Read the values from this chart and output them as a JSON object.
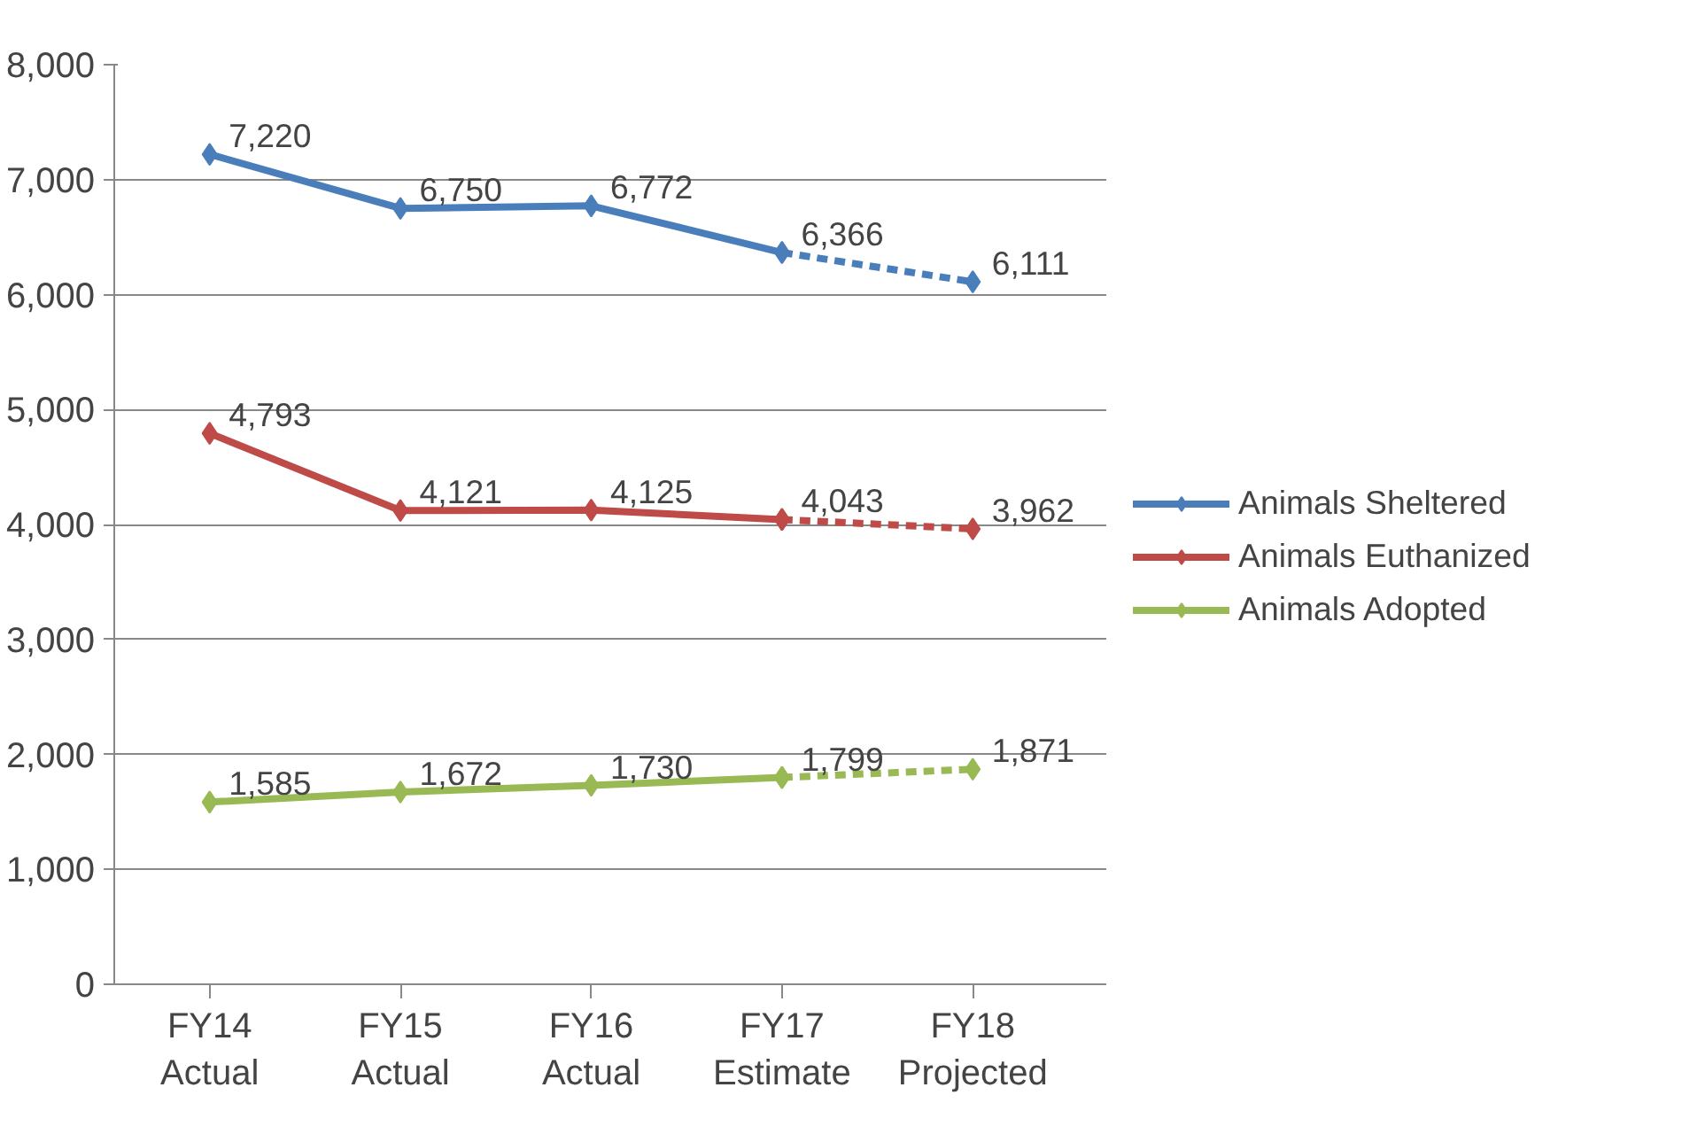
{
  "chart_data": {
    "type": "line",
    "categories": [
      "FY14\nActual",
      "FY15\nActual",
      "FY16\nActual",
      "FY17\nEstimate",
      "FY18\nProjected"
    ],
    "series": [
      {
        "name": "Animals Sheltered",
        "color": "#4a7ebb",
        "line_style": "solid",
        "values": [
          7220,
          6750,
          6772,
          6366,
          null
        ],
        "value_labels": [
          "7,220",
          "6,750",
          "6,772",
          "6,366",
          null
        ]
      },
      {
        "color": "#4a7ebb",
        "line_style": "dashed",
        "values": [
          null,
          null,
          null,
          6366,
          6111
        ],
        "value_labels": [
          null,
          null,
          null,
          null,
          "6,111"
        ]
      },
      {
        "name": "Animals Euthanized",
        "color": "#be4b48",
        "line_style": "solid",
        "values": [
          4793,
          4121,
          4125,
          4043,
          null
        ],
        "value_labels": [
          "4,793",
          "4,121",
          "4,125",
          "4,043",
          null
        ]
      },
      {
        "color": "#be4b48",
        "line_style": "dashed",
        "values": [
          null,
          null,
          null,
          4043,
          3962
        ],
        "value_labels": [
          null,
          null,
          null,
          null,
          "3,962"
        ]
      },
      {
        "name": "Animals Adopted",
        "color": "#98b954",
        "line_style": "solid",
        "values": [
          1585,
          1672,
          1730,
          1799,
          null
        ],
        "value_labels": [
          "1,585",
          "1,672",
          "1,730",
          "1,799",
          null
        ]
      },
      {
        "color": "#98b954",
        "line_style": "dashed",
        "values": [
          null,
          null,
          null,
          1799,
          1871
        ],
        "value_labels": [
          null,
          null,
          null,
          null,
          "1,871"
        ]
      }
    ],
    "ylim": [
      0,
      8000
    ],
    "yticks": [
      {
        "value": 0,
        "label": "0"
      },
      {
        "value": 1000,
        "label": "1,000"
      },
      {
        "value": 2000,
        "label": "2,000"
      },
      {
        "value": 3000,
        "label": "3,000"
      },
      {
        "value": 4000,
        "label": "4,000"
      },
      {
        "value": 5000,
        "label": "5,000"
      },
      {
        "value": 6000,
        "label": "6,000"
      },
      {
        "value": 7000,
        "label": "7,000"
      },
      {
        "value": 8000,
        "label": "8,000"
      }
    ],
    "grid": "y",
    "legend": "right",
    "marker": "diamond"
  }
}
